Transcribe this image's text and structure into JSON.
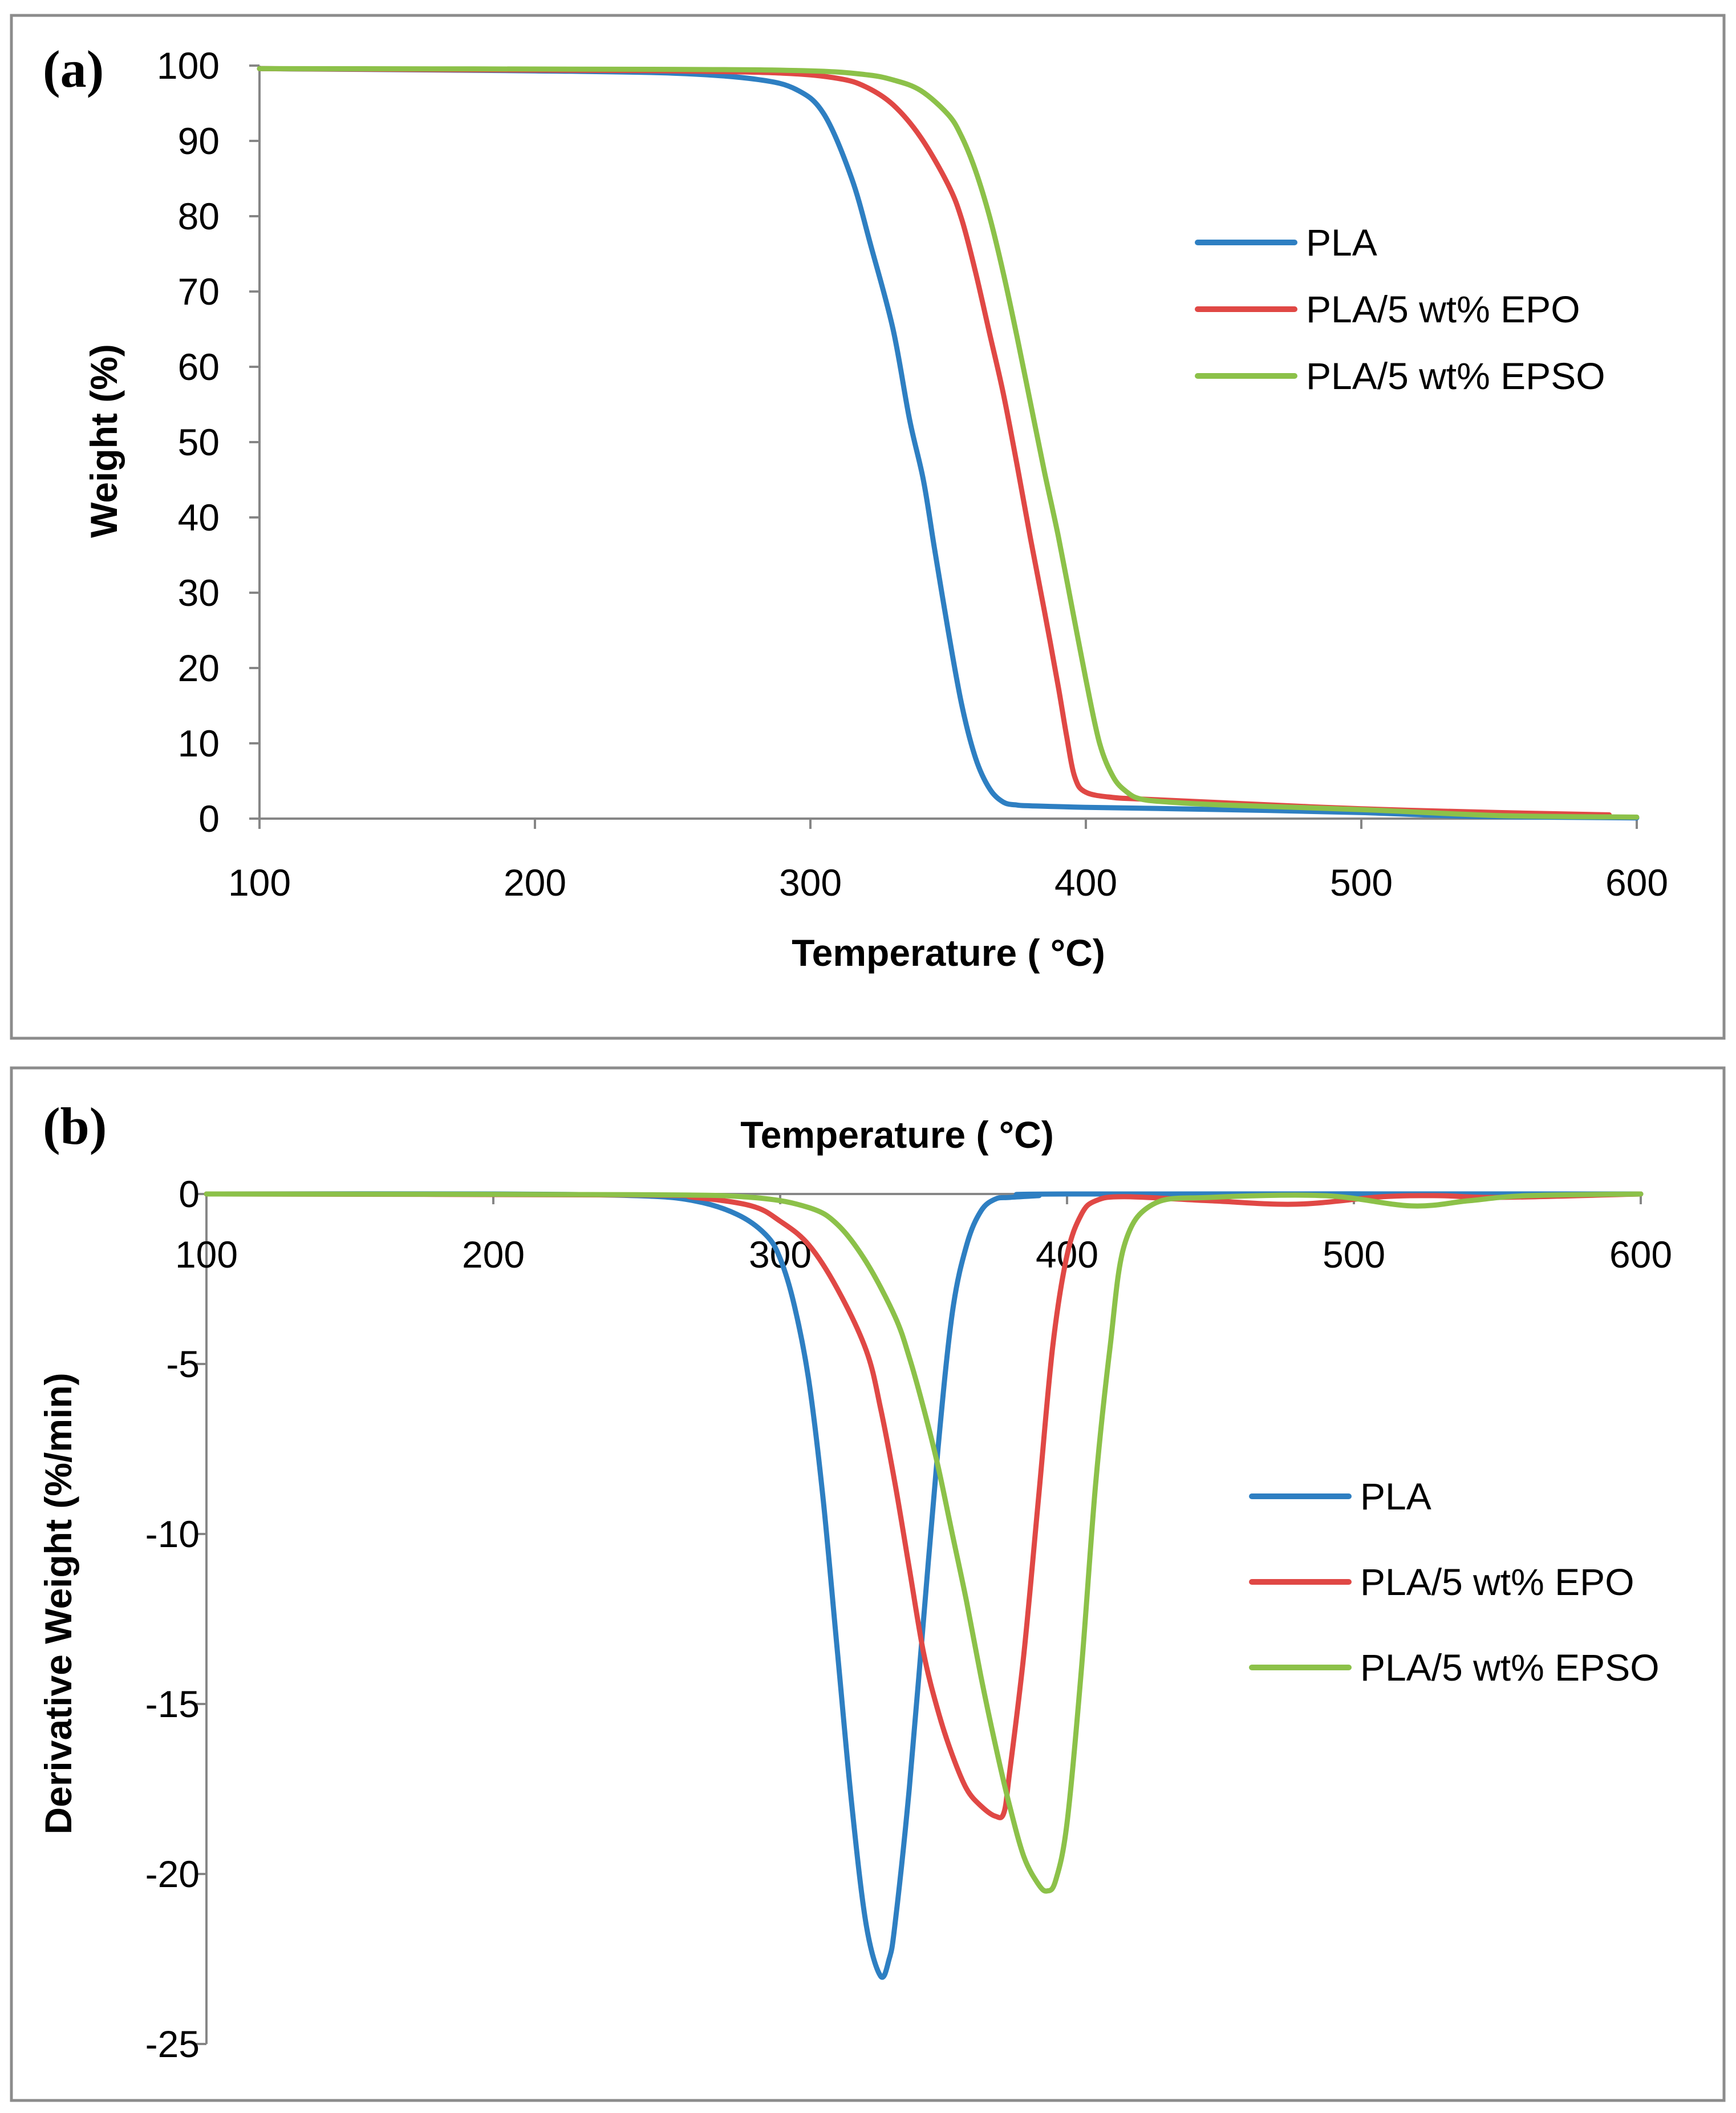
{
  "colors": {
    "PLA": "#2e7fc2",
    "PLA/5 wt% EPO": "#e04845",
    "PLA/5 wt% EPSO": "#8cc149"
  },
  "chart_data": [
    {
      "id": "a",
      "panel_label": "(a)",
      "type": "line",
      "title": "",
      "xlabel": "Temperature ( °C)",
      "ylabel": "Weight (%)",
      "xlim": [
        100,
        600
      ],
      "ylim": [
        0,
        100
      ],
      "xticks": [
        100,
        200,
        300,
        400,
        500,
        600
      ],
      "yticks": [
        0,
        10,
        20,
        30,
        40,
        50,
        60,
        70,
        80,
        90,
        100
      ],
      "legend_position": "right",
      "series": [
        {
          "name": "PLA",
          "x": [
            100,
            200,
            250,
            280,
            295,
            305,
            315,
            322,
            330,
            336,
            341,
            345,
            350,
            355,
            360,
            365,
            370,
            375,
            380,
            400,
            450,
            500,
            540,
            600
          ],
          "y": [
            99.6,
            99.3,
            99.0,
            98.2,
            96.8,
            93.5,
            85,
            76,
            65,
            53,
            45,
            36,
            25,
            15,
            8,
            4,
            2.2,
            1.8,
            1.7,
            1.5,
            1.2,
            0.8,
            0.3,
            0.1
          ]
        },
        {
          "name": "PLA/5 wt% EPO",
          "x": [
            100,
            200,
            250,
            290,
            310,
            320,
            330,
            340,
            350,
            355,
            360,
            365,
            370,
            375,
            380,
            385,
            390,
            393,
            396,
            400,
            410,
            420,
            450,
            500,
            550,
            590
          ],
          "y": [
            99.6,
            99.4,
            99.3,
            99.0,
            98.3,
            97.2,
            94.8,
            90.5,
            84.2,
            79.5,
            72.5,
            64.5,
            56.5,
            47,
            37,
            27.5,
            17.5,
            11,
            5.5,
            3.5,
            2.8,
            2.6,
            2.1,
            1.3,
            0.8,
            0.5
          ]
        },
        {
          "name": "PLA/5 wt% EPSO",
          "x": [
            100,
            250,
            300,
            320,
            330,
            340,
            350,
            355,
            360,
            365,
            370,
            375,
            380,
            385,
            390,
            395,
            400,
            405,
            410,
            415,
            420,
            430,
            450,
            500,
            550,
            600
          ],
          "y": [
            99.6,
            99.5,
            99.3,
            98.8,
            98.1,
            96.7,
            93.5,
            90.5,
            86,
            80,
            72.5,
            64,
            55,
            46,
            37.5,
            28,
            18.5,
            10,
            5.5,
            3.5,
            2.6,
            2.2,
            1.8,
            1.2,
            0.4,
            0.2
          ]
        }
      ]
    },
    {
      "id": "b",
      "panel_label": "(b)",
      "type": "line",
      "title": "",
      "xlabel": "Temperature ( °C)",
      "ylabel": "Derivative Weight (%/min)",
      "xlim": [
        100,
        600
      ],
      "ylim": [
        -25,
        0
      ],
      "xticks": [
        100,
        200,
        300,
        400,
        500,
        600
      ],
      "yticks": [
        0,
        -5,
        -10,
        -15,
        -20,
        -25
      ],
      "xaxis_position": "top",
      "legend_position": "right",
      "series": [
        {
          "name": "PLA",
          "x": [
            100,
            200,
            250,
            270,
            285,
            295,
            300,
            305,
            310,
            315,
            320,
            325,
            330,
            335,
            338,
            340,
            345,
            350,
            355,
            360,
            365,
            370,
            375,
            380,
            390,
            400,
            600
          ],
          "y": [
            0,
            0,
            -0.05,
            -0.2,
            -0.6,
            -1.2,
            -1.9,
            -3.3,
            -5.5,
            -9,
            -13.5,
            -18,
            -21.5,
            -23,
            -22.5,
            -21.5,
            -17.5,
            -12.5,
            -7.5,
            -3.5,
            -1.5,
            -0.5,
            -0.15,
            -0.1,
            -0.05,
            0,
            0
          ]
        },
        {
          "name": "PLA/5 wt% EPO",
          "x": [
            100,
            250,
            270,
            290,
            300,
            310,
            320,
            330,
            335,
            340,
            345,
            350,
            355,
            360,
            365,
            370,
            375,
            378,
            380,
            385,
            390,
            395,
            400,
            405,
            410,
            420,
            450,
            480,
            510,
            530,
            550,
            600
          ],
          "y": [
            0,
            -0.03,
            -0.1,
            -0.35,
            -0.8,
            -1.5,
            -2.8,
            -4.6,
            -6.3,
            -8.5,
            -11,
            -13.5,
            -15.2,
            -16.5,
            -17.5,
            -18,
            -18.3,
            -18.2,
            -17,
            -13.5,
            -9,
            -4.5,
            -1.8,
            -0.6,
            -0.2,
            -0.08,
            -0.2,
            -0.3,
            -0.08,
            -0.05,
            -0.1,
            0
          ]
        },
        {
          "name": "PLA/5 wt% EPSO",
          "x": [
            100,
            250,
            290,
            310,
            320,
            330,
            340,
            345,
            350,
            355,
            360,
            365,
            370,
            375,
            380,
            385,
            390,
            393,
            396,
            400,
            405,
            410,
            415,
            420,
            430,
            450,
            490,
            520,
            540,
            560,
            600
          ],
          "y": [
            0,
            -0.02,
            -0.1,
            -0.4,
            -0.9,
            -2,
            -3.6,
            -4.8,
            -6.3,
            -8,
            -10,
            -12,
            -14.2,
            -16.2,
            -18,
            -19.5,
            -20.3,
            -20.5,
            -20.2,
            -18.5,
            -14,
            -8.5,
            -4.5,
            -1.5,
            -0.3,
            -0.1,
            -0.05,
            -0.35,
            -0.2,
            -0.05,
            0
          ]
        }
      ]
    }
  ]
}
